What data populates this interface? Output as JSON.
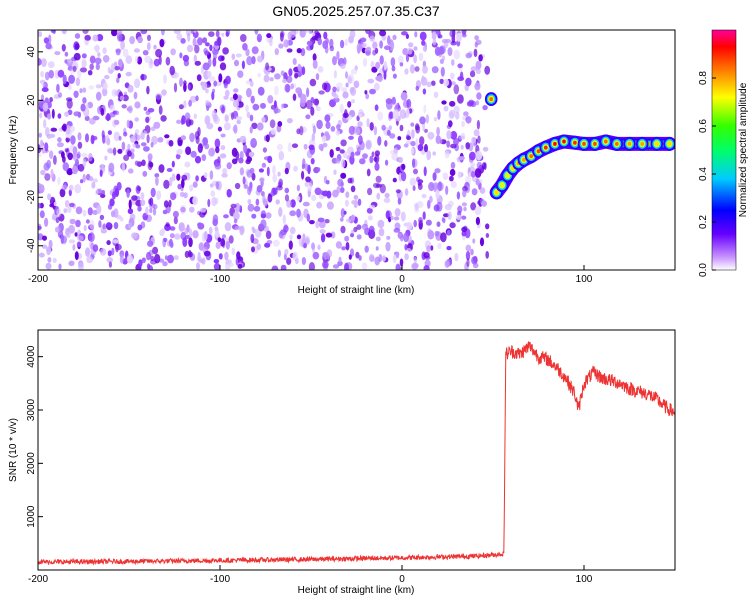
{
  "title": "GN05.2025.257.07.35.C37",
  "chart_data": [
    {
      "type": "heatmap",
      "xlabel": "Height of straight line (km)",
      "ylabel": "Frequency (Hz)",
      "xlim": [
        -200,
        150
      ],
      "ylim": [
        -50,
        49
      ],
      "xticks": [
        "-200",
        "-100",
        "0",
        "100"
      ],
      "xtick_values": [
        -200,
        -100,
        0,
        100
      ],
      "yticks": [
        "-40",
        "-20",
        "0",
        "20",
        "40"
      ],
      "ytick_values": [
        -40,
        -20,
        0,
        20,
        40
      ],
      "grid": false,
      "noise_region_x": [
        -200,
        47
      ],
      "features": [
        {
          "x": 49,
          "y": 20.5,
          "amplitude": 0.85
        },
        {
          "x": 52,
          "y": -18,
          "amplitude": 0.75
        },
        {
          "x": 55,
          "y": -15,
          "amplitude": 0.7
        },
        {
          "x": 58,
          "y": -11,
          "amplitude": 0.7
        },
        {
          "x": 61,
          "y": -8,
          "amplitude": 0.75
        },
        {
          "x": 64,
          "y": -6,
          "amplitude": 0.8
        },
        {
          "x": 67,
          "y": -4.5,
          "amplitude": 0.8
        },
        {
          "x": 71,
          "y": -3,
          "amplitude": 0.85
        },
        {
          "x": 75,
          "y": -1,
          "amplitude": 0.9
        },
        {
          "x": 79,
          "y": 0.5,
          "amplitude": 0.95
        },
        {
          "x": 84,
          "y": 2,
          "amplitude": 1.0
        },
        {
          "x": 89,
          "y": 3,
          "amplitude": 1.0
        },
        {
          "x": 95,
          "y": 2.5,
          "amplitude": 0.95
        },
        {
          "x": 100,
          "y": 2,
          "amplitude": 0.9
        },
        {
          "x": 106,
          "y": 2,
          "amplitude": 0.9
        },
        {
          "x": 112,
          "y": 3,
          "amplitude": 0.85
        },
        {
          "x": 118,
          "y": 2,
          "amplitude": 0.85
        },
        {
          "x": 125,
          "y": 2,
          "amplitude": 0.8
        },
        {
          "x": 132,
          "y": 2,
          "amplitude": 0.8
        },
        {
          "x": 140,
          "y": 2,
          "amplitude": 0.75
        },
        {
          "x": 147,
          "y": 2,
          "amplitude": 0.75
        }
      ],
      "colorbar": {
        "label": "Normalized spectral amplitude",
        "range": [
          0,
          1
        ],
        "ticks": [
          "0.0",
          "0.2",
          "0.4",
          "0.6",
          "0.8"
        ],
        "tick_values": [
          0.0,
          0.2,
          0.4,
          0.6,
          0.8
        ]
      }
    },
    {
      "type": "line",
      "xlabel": "Height of straight line (km)",
      "ylabel": "SNR (10 * v/v)",
      "xlim": [
        -200,
        150
      ],
      "ylim": [
        0,
        4500
      ],
      "xticks": [
        "-200",
        "-100",
        "0",
        "100"
      ],
      "xtick_values": [
        -200,
        -100,
        0,
        100
      ],
      "yticks": [
        "1000",
        "2000",
        "3000",
        "4000"
      ],
      "ytick_values": [
        1000,
        2000,
        3000,
        4000
      ],
      "grid": false,
      "series": [
        {
          "color": "#ee3333",
          "x": [
            -200,
            -150,
            -100,
            -50,
            0,
            40,
            56,
            57,
            60,
            65,
            70,
            75,
            80,
            85,
            90,
            95,
            97,
            100,
            105,
            110,
            115,
            120,
            125,
            130,
            135,
            140,
            145,
            150
          ],
          "y": [
            150,
            160,
            180,
            200,
            230,
            260,
            300,
            4050,
            4100,
            4050,
            4200,
            4000,
            3950,
            3800,
            3600,
            3300,
            3000,
            3500,
            3700,
            3600,
            3550,
            3500,
            3400,
            3350,
            3300,
            3200,
            3050,
            2950
          ]
        }
      ]
    }
  ],
  "colors": {
    "noise_purple": "#6600dd",
    "snr_line": "#ee3333"
  }
}
